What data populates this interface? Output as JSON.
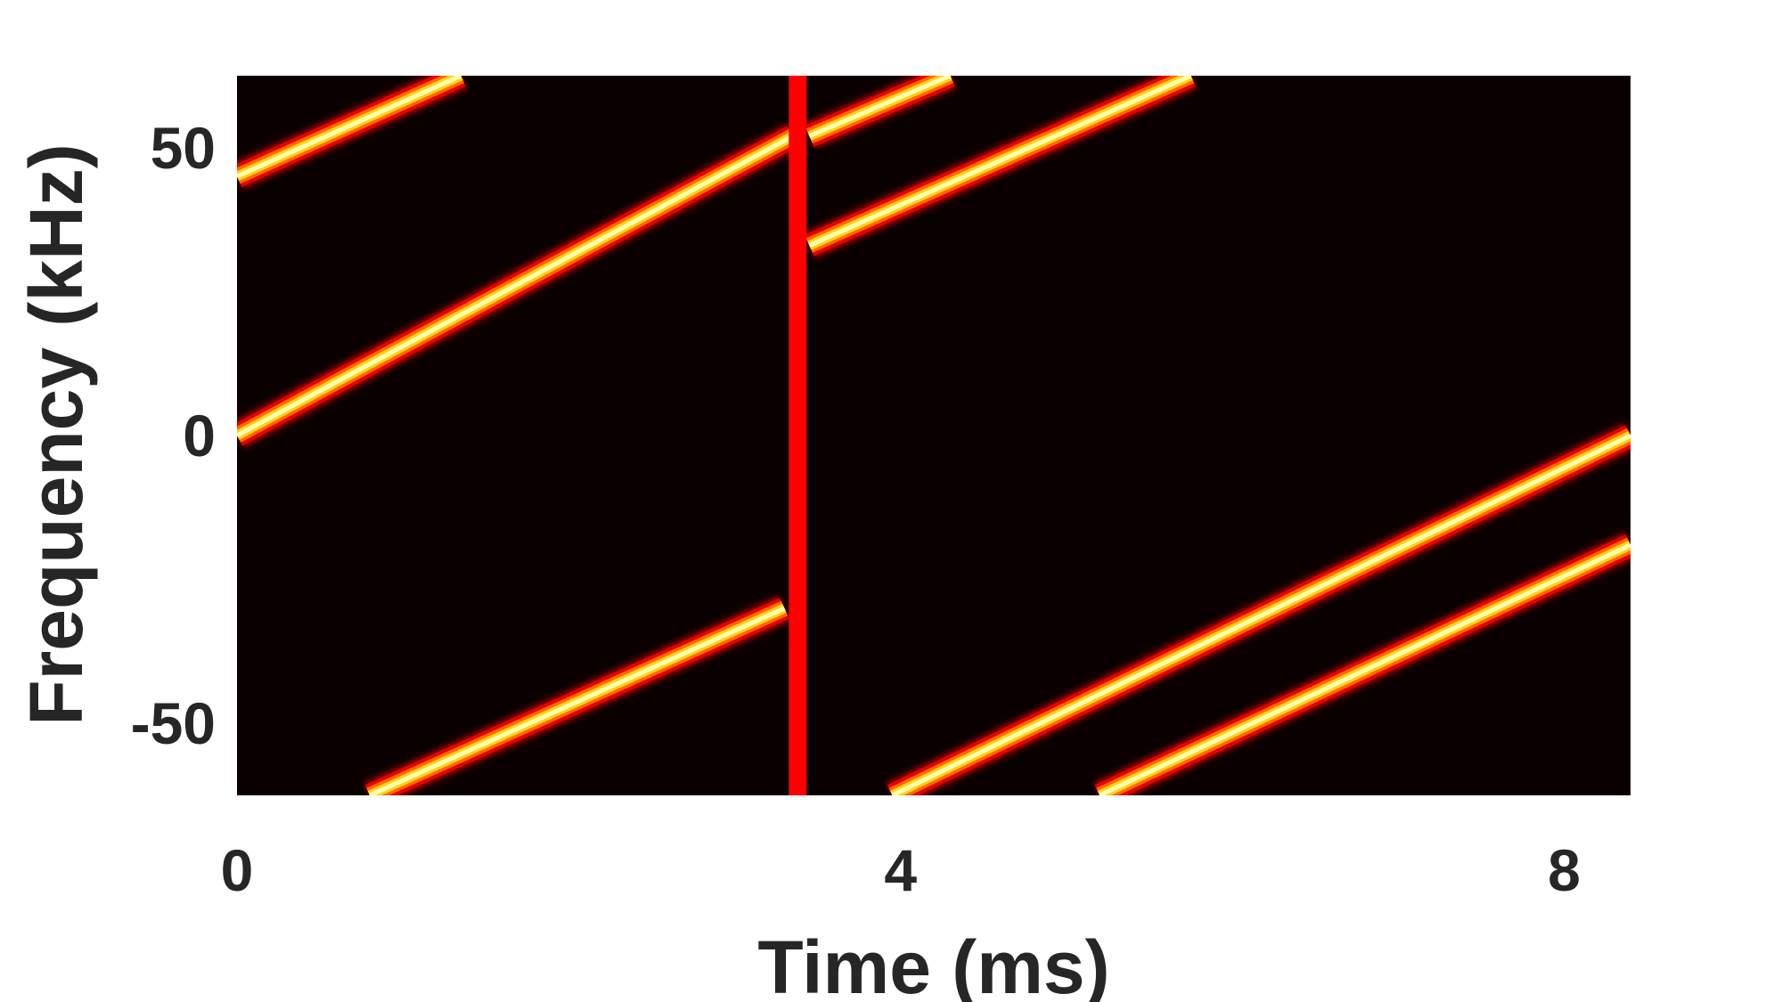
{
  "chart_data": {
    "type": "heatmap",
    "title": "",
    "xlabel": "Time (ms)",
    "ylabel": "Frequency (kHz)",
    "xlim": [
      0,
      8.4
    ],
    "ylim": [
      -62.5,
      62.5
    ],
    "xticks": [
      0,
      4,
      8
    ],
    "xtick_labels": [
      "0",
      "4",
      "8"
    ],
    "yticks": [
      -50,
      0,
      50
    ],
    "ytick_labels": [
      "-50",
      "0",
      "50"
    ],
    "colormap": "hot",
    "background_color": "#0a0000",
    "grid": false,
    "chirp_lines": [
      {
        "x": [
          0,
          1.35
        ],
        "y": [
          45,
          62.5
        ]
      },
      {
        "x": [
          0,
          3.35
        ],
        "y": [
          0,
          52
        ]
      },
      {
        "x": [
          0.8,
          3.3
        ],
        "y": [
          -62.5,
          -30
        ]
      },
      {
        "x": [
          3.45,
          4.3
        ],
        "y": [
          52,
          62.5
        ]
      },
      {
        "x": [
          3.45,
          5.75
        ],
        "y": [
          33,
          62.5
        ]
      },
      {
        "x": [
          3.95,
          8.4
        ],
        "y": [
          -62.5,
          0
        ]
      },
      {
        "x": [
          5.2,
          8.4
        ],
        "y": [
          -62.5,
          -19
        ]
      }
    ],
    "marker_line": {
      "x": 3.38,
      "color": "#ff0000"
    }
  }
}
